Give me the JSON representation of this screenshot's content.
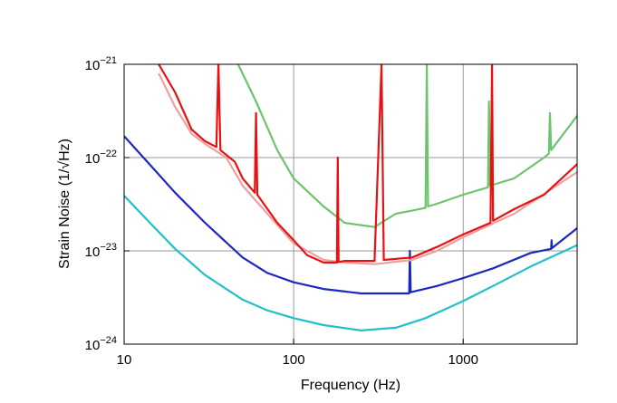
{
  "chart_data": {
    "type": "line",
    "xlabel": "Frequency (Hz)",
    "ylabel": "Strain Noise (1/√Hz)",
    "xscale": "log",
    "yscale": "log",
    "xlim": [
      10,
      4700
    ],
    "ylim": [
      1e-24,
      1e-21
    ],
    "xticks": [
      10,
      100,
      1000
    ],
    "yticks": [
      {
        "value": 1e-24,
        "label": "10",
        "exponent": "−24"
      },
      {
        "value": 1e-23,
        "label": "10",
        "exponent": "−23"
      },
      {
        "value": 1e-22,
        "label": "10",
        "exponent": "−22"
      },
      {
        "value": 1e-21,
        "label": "10",
        "exponent": "−21"
      }
    ],
    "grid": true,
    "series": [
      {
        "color": "#20c0c8",
        "x": [
          10,
          15,
          20,
          30,
          50,
          70,
          100,
          150,
          250,
          400,
          600,
          1000,
          1500,
          2500,
          4700
        ],
        "values": [
          3.9e-23,
          1.8e-23,
          1.05e-23,
          5.5e-24,
          3e-24,
          2.3e-24,
          1.9e-24,
          1.6e-24,
          1.4e-24,
          1.5e-24,
          1.9e-24,
          2.9e-24,
          4.2e-24,
          6.8e-24,
          1.15e-23
        ]
      },
      {
        "color": "#1a28c0",
        "x": [
          10,
          15,
          20,
          30,
          50,
          70,
          100,
          150,
          250,
          400,
          480,
          485,
          490,
          700,
          1000,
          1500,
          2500,
          3300,
          3320,
          3340,
          4700
        ],
        "values": [
          1.7e-22,
          7.5e-23,
          4.2e-23,
          2e-23,
          8.5e-24,
          5.8e-24,
          4.6e-24,
          3.9e-24,
          3.5e-24,
          3.5e-24,
          3.5e-24,
          1e-23,
          3.6e-24,
          4.2e-24,
          5.1e-24,
          6.5e-24,
          9.5e-24,
          1.05e-23,
          1.3e-23,
          1.07e-23,
          1.75e-23
        ]
      },
      {
        "color": "#6cc46c",
        "x": [
          47,
          60,
          80,
          100,
          150,
          200,
          300,
          400,
          500,
          600,
          610,
          620,
          700,
          1000,
          1400,
          1420,
          1440,
          2000,
          3000,
          3200,
          3250,
          3300,
          4700
        ],
        "values": [
          1e-21,
          4e-22,
          1.2e-22,
          6e-23,
          3e-23,
          2e-23,
          1.8e-23,
          2.5e-23,
          2.7e-23,
          2.9e-23,
          1e-21,
          3e-23,
          3.2e-23,
          4e-23,
          4.8e-23,
          4e-22,
          5e-23,
          6e-23,
          1e-22,
          1.1e-22,
          3e-22,
          1.2e-22,
          2.8e-22
        ]
      },
      {
        "color": "#f0a0a0",
        "x": [
          16,
          20,
          25,
          30,
          40,
          50,
          70,
          100,
          150,
          200,
          300,
          500,
          700,
          1000,
          2000,
          4700
        ],
        "values": [
          8e-22,
          3.5e-22,
          1.8e-22,
          1.4e-22,
          1e-22,
          5e-23,
          2.5e-23,
          1.2e-23,
          8e-24,
          7.5e-24,
          7.2e-24,
          8e-24,
          1e-23,
          1.4e-23,
          2.5e-23,
          7e-23
        ]
      },
      {
        "color": "#e81010",
        "x": [
          16,
          20,
          25,
          30,
          35,
          36,
          37,
          45,
          50,
          59,
          60,
          61,
          80,
          100,
          120,
          150,
          180,
          182,
          184,
          200,
          300,
          330,
          340,
          500,
          700,
          1000,
          1450,
          1480,
          1500,
          2000,
          3000,
          4700
        ],
        "values": [
          1e-21,
          5e-22,
          2e-22,
          1.5e-22,
          1.3e-22,
          1e-21,
          1.2e-22,
          9e-23,
          6e-23,
          4.2e-23,
          3e-22,
          4e-23,
          2e-23,
          1.3e-23,
          9e-24,
          7.5e-24,
          7.5e-24,
          1e-22,
          7.6e-24,
          7.8e-24,
          7.8e-24,
          1e-21,
          8e-24,
          8.5e-24,
          1.1e-23,
          1.5e-23,
          2e-23,
          1e-21,
          2.1e-23,
          2.8e-23,
          4e-23,
          8.5e-23
        ]
      }
    ]
  }
}
